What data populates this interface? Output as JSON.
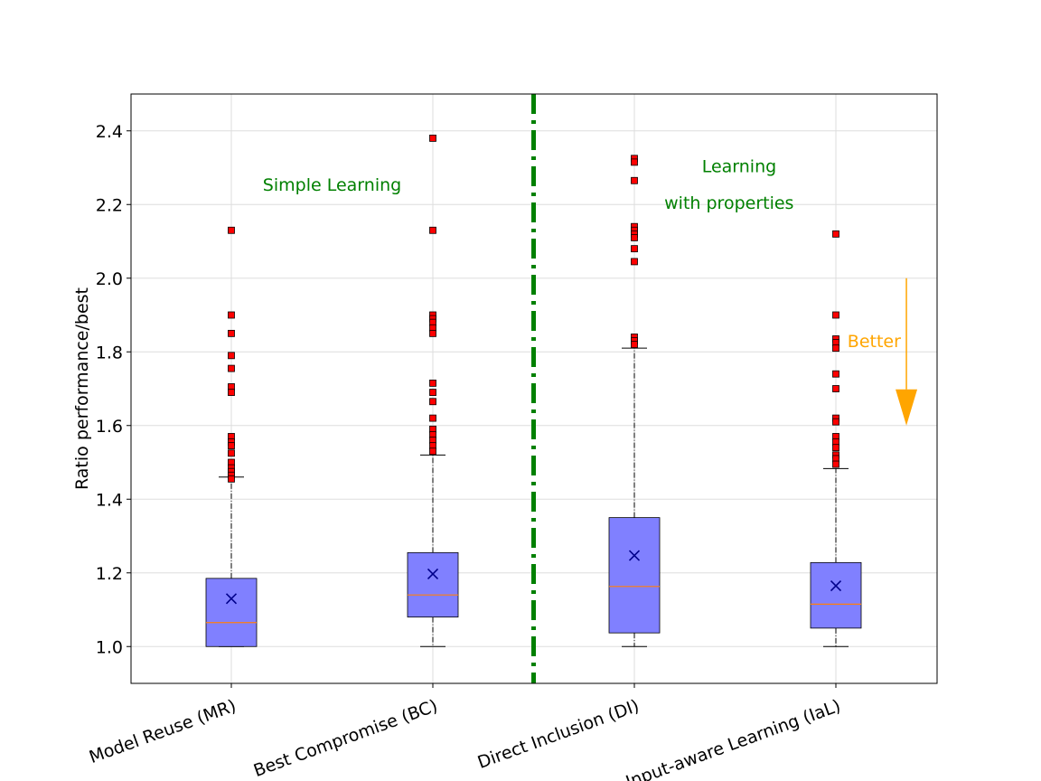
{
  "chart_data": {
    "type": "box",
    "ylabel": "Ratio performance/best",
    "ylim": [
      0.9,
      2.5
    ],
    "yticks": [
      1.0,
      1.2,
      1.4,
      1.6,
      1.8,
      2.0,
      2.2,
      2.4
    ],
    "ytick_labels": [
      "1.0",
      "1.2",
      "1.4",
      "1.6",
      "1.8",
      "2.0",
      "2.2",
      "2.4"
    ],
    "grid": true,
    "categories": [
      "Model Reuse (MR)",
      "Best Compromise (BC)",
      "Direct Inclusion (DI)",
      "Input-aware Learning (IaL)"
    ],
    "boxes": [
      {
        "whisker_low": 1.0,
        "q1": 1.0,
        "median": 1.065,
        "q3": 1.185,
        "whisker_high": 1.46,
        "mean": 1.13,
        "outliers": [
          2.13,
          1.9,
          1.85,
          1.79,
          1.755,
          1.705,
          1.69,
          1.57,
          1.555,
          1.545,
          1.525,
          1.5,
          1.485,
          1.475,
          1.465,
          1.455
        ]
      },
      {
        "whisker_low": 1.0,
        "q1": 1.08,
        "median": 1.14,
        "q3": 1.255,
        "whisker_high": 1.52,
        "mean": 1.197,
        "outliers": [
          2.38,
          2.13,
          1.9,
          1.89,
          1.88,
          1.865,
          1.85,
          1.715,
          1.69,
          1.665,
          1.62,
          1.59,
          1.575,
          1.56,
          1.545,
          1.53
        ]
      },
      {
        "whisker_low": 1.0,
        "q1": 1.037,
        "median": 1.163,
        "q3": 1.35,
        "whisker_high": 1.81,
        "mean": 1.247,
        "outliers": [
          2.325,
          2.315,
          2.265,
          2.14,
          2.13,
          2.12,
          2.11,
          2.08,
          2.045,
          1.84,
          1.83,
          1.82
        ]
      },
      {
        "whisker_low": 1.0,
        "q1": 1.05,
        "median": 1.115,
        "q3": 1.228,
        "whisker_high": 1.483,
        "mean": 1.165,
        "outliers": [
          2.12,
          1.9,
          1.835,
          1.825,
          1.81,
          1.74,
          1.7,
          1.62,
          1.61,
          1.57,
          1.555,
          1.54,
          1.52,
          1.51,
          1.495
        ]
      }
    ],
    "separator_between": [
      2,
      3
    ],
    "annotations": [
      {
        "text": "Simple Learning",
        "x": 1.5,
        "y": 2.255,
        "color": "#008000"
      },
      {
        "text": "Learning",
        "x": 3.52,
        "y": 2.305,
        "color": "#008000"
      },
      {
        "text": "with properties",
        "x": 3.47,
        "y": 2.205,
        "color": "#008000"
      },
      {
        "text": "Better",
        "x": 4.19,
        "y": 1.83,
        "color": "#ffa500"
      }
    ],
    "arrow": {
      "x": 4.35,
      "y_start": 2.0,
      "y_end": 1.6,
      "color": "#ffa500"
    },
    "colors": {
      "box_fill": "#8080ff",
      "median": "#ff7f0e",
      "mean_marker": "#00008b",
      "outlier": "#ff0000",
      "separator": "#008000",
      "grid": "#dddddd"
    }
  }
}
